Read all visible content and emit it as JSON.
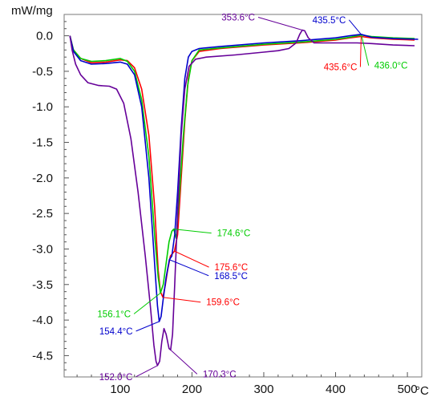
{
  "chart_data": {
    "type": "line",
    "ylabel": "mW/mg",
    "x_unit": "°C",
    "xlim": [
      22,
      520
    ],
    "ylim": [
      -4.8,
      0.3
    ],
    "x_ticks": [
      {
        "value": 100,
        "label": "100"
      },
      {
        "value": 200,
        "label": "200"
      },
      {
        "value": 300,
        "label": "300"
      },
      {
        "value": 400,
        "label": "400"
      },
      {
        "value": 500,
        "label": "500"
      }
    ],
    "y_ticks": [
      {
        "value": 0.0,
        "label": "0.0"
      },
      {
        "value": -0.5,
        "label": "-0.5"
      },
      {
        "value": -1.0,
        "label": "-1.0"
      },
      {
        "value": -1.5,
        "label": "-1.5"
      },
      {
        "value": -2.0,
        "label": "-2.0"
      },
      {
        "value": -2.5,
        "label": "-2.5"
      },
      {
        "value": -3.0,
        "label": "-3.0"
      },
      {
        "value": -3.5,
        "label": "-3.5"
      },
      {
        "value": -4.0,
        "label": "-4.0"
      },
      {
        "value": -4.5,
        "label": "-4.5"
      }
    ],
    "grid": false,
    "series": [
      {
        "color": "#ff0000",
        "points": [
          [
            30,
            0
          ],
          [
            35,
            -0.2
          ],
          [
            45,
            -0.32
          ],
          [
            60,
            -0.38
          ],
          [
            80,
            -0.37
          ],
          [
            100,
            -0.34
          ],
          [
            110,
            -0.35
          ],
          [
            120,
            -0.45
          ],
          [
            130,
            -0.75
          ],
          [
            140,
            -1.4
          ],
          [
            148,
            -2.4
          ],
          [
            153,
            -3.3
          ],
          [
            156,
            -3.6
          ],
          [
            159.6,
            -3.68
          ],
          [
            163,
            -3.5
          ],
          [
            166,
            -3.3
          ],
          [
            170,
            -3.1
          ],
          [
            175.6,
            -3.03
          ],
          [
            180,
            -2.8
          ],
          [
            185,
            -2.0
          ],
          [
            190,
            -1.2
          ],
          [
            195,
            -0.6
          ],
          [
            200,
            -0.35
          ],
          [
            210,
            -0.22
          ],
          [
            240,
            -0.18
          ],
          [
            300,
            -0.13
          ],
          [
            350,
            -0.1
          ],
          [
            400,
            -0.06
          ],
          [
            420,
            -0.03
          ],
          [
            435.6,
            -0.01
          ],
          [
            450,
            -0.03
          ],
          [
            480,
            -0.05
          ],
          [
            510,
            -0.06
          ]
        ]
      },
      {
        "color": "#00cc00",
        "points": [
          [
            30,
            0
          ],
          [
            35,
            -0.2
          ],
          [
            45,
            -0.32
          ],
          [
            60,
            -0.36
          ],
          [
            80,
            -0.35
          ],
          [
            100,
            -0.32
          ],
          [
            110,
            -0.36
          ],
          [
            120,
            -0.5
          ],
          [
            130,
            -0.9
          ],
          [
            140,
            -1.7
          ],
          [
            148,
            -2.8
          ],
          [
            153,
            -3.4
          ],
          [
            156.1,
            -3.62
          ],
          [
            160,
            -3.5
          ],
          [
            164,
            -3.2
          ],
          [
            168,
            -2.9
          ],
          [
            172,
            -2.75
          ],
          [
            174.6,
            -2.72
          ],
          [
            178,
            -2.85
          ],
          [
            182,
            -2.3
          ],
          [
            188,
            -1.4
          ],
          [
            194,
            -0.7
          ],
          [
            200,
            -0.35
          ],
          [
            210,
            -0.2
          ],
          [
            240,
            -0.17
          ],
          [
            300,
            -0.12
          ],
          [
            350,
            -0.09
          ],
          [
            400,
            -0.05
          ],
          [
            420,
            -0.02
          ],
          [
            436,
            0.01
          ],
          [
            450,
            -0.01
          ],
          [
            480,
            -0.03
          ],
          [
            510,
            -0.04
          ]
        ]
      },
      {
        "color": "#0000cc",
        "points": [
          [
            30,
            0
          ],
          [
            35,
            -0.22
          ],
          [
            45,
            -0.35
          ],
          [
            60,
            -0.4
          ],
          [
            80,
            -0.39
          ],
          [
            100,
            -0.37
          ],
          [
            110,
            -0.4
          ],
          [
            120,
            -0.55
          ],
          [
            130,
            -1.0
          ],
          [
            140,
            -2.0
          ],
          [
            148,
            -3.2
          ],
          [
            152,
            -3.8
          ],
          [
            154.4,
            -4.02
          ],
          [
            157,
            -3.95
          ],
          [
            160,
            -3.7
          ],
          [
            164,
            -3.4
          ],
          [
            168.5,
            -3.15
          ],
          [
            172,
            -3.1
          ],
          [
            176,
            -2.8
          ],
          [
            180,
            -2.2
          ],
          [
            185,
            -1.3
          ],
          [
            190,
            -0.6
          ],
          [
            195,
            -0.3
          ],
          [
            200,
            -0.22
          ],
          [
            210,
            -0.18
          ],
          [
            240,
            -0.15
          ],
          [
            300,
            -0.1
          ],
          [
            350,
            -0.07
          ],
          [
            400,
            -0.03
          ],
          [
            420,
            0.0
          ],
          [
            435.5,
            0.02
          ],
          [
            450,
            -0.02
          ],
          [
            480,
            -0.04
          ],
          [
            515,
            -0.05
          ]
        ]
      },
      {
        "color": "#660099",
        "points": [
          [
            30,
            0
          ],
          [
            33,
            -0.2
          ],
          [
            38,
            -0.4
          ],
          [
            45,
            -0.55
          ],
          [
            55,
            -0.66
          ],
          [
            70,
            -0.7
          ],
          [
            85,
            -0.71
          ],
          [
            95,
            -0.75
          ],
          [
            105,
            -0.95
          ],
          [
            115,
            -1.45
          ],
          [
            125,
            -2.2
          ],
          [
            135,
            -3.1
          ],
          [
            142,
            -3.8
          ],
          [
            147,
            -4.35
          ],
          [
            150,
            -4.58
          ],
          [
            152,
            -4.64
          ],
          [
            155,
            -4.58
          ],
          [
            158,
            -4.3
          ],
          [
            161,
            -4.12
          ],
          [
            164,
            -4.2
          ],
          [
            168,
            -4.4
          ],
          [
            170.3,
            -4.42
          ],
          [
            173,
            -4.2
          ],
          [
            176,
            -3.5
          ],
          [
            180,
            -2.5
          ],
          [
            185,
            -1.4
          ],
          [
            190,
            -0.75
          ],
          [
            196,
            -0.43
          ],
          [
            205,
            -0.33
          ],
          [
            220,
            -0.3
          ],
          [
            260,
            -0.27
          ],
          [
            300,
            -0.23
          ],
          [
            320,
            -0.21
          ],
          [
            335,
            -0.18
          ],
          [
            345,
            -0.1
          ],
          [
            350,
            0.02
          ],
          [
            353.6,
            0.08
          ],
          [
            357,
            0.07
          ],
          [
            362,
            -0.03
          ],
          [
            370,
            -0.1
          ],
          [
            400,
            -0.1
          ],
          [
            430,
            -0.1
          ],
          [
            450,
            -0.11
          ],
          [
            480,
            -0.13
          ],
          [
            510,
            -0.14
          ]
        ]
      }
    ],
    "annotations": [
      {
        "label": "353.6°C",
        "color": "#660099",
        "x": 353.6,
        "y": 0.08
      },
      {
        "label": "435.5°C",
        "color": "#0000cc",
        "x": 435.5,
        "y": 0.02
      },
      {
        "label": "435.6°C",
        "color": "#ff0000",
        "x": 435.6,
        "y": -0.01
      },
      {
        "label": "436.0°C",
        "color": "#00cc00",
        "x": 436.0,
        "y": 0.01
      },
      {
        "label": "174.6°C",
        "color": "#00cc00",
        "x": 174.6,
        "y": -2.72
      },
      {
        "label": "175.6°C",
        "color": "#ff0000",
        "x": 175.6,
        "y": -3.03
      },
      {
        "label": "168.5°C",
        "color": "#0000cc",
        "x": 168.5,
        "y": -3.15
      },
      {
        "label": "159.6°C",
        "color": "#ff0000",
        "x": 159.6,
        "y": -3.68
      },
      {
        "label": "156.1°C",
        "color": "#00cc00",
        "x": 156.1,
        "y": -3.62
      },
      {
        "label": "154.4°C",
        "color": "#0000cc",
        "x": 154.4,
        "y": -4.02
      },
      {
        "label": "152.0°C",
        "color": "#660099",
        "x": 152.0,
        "y": -4.64
      },
      {
        "label": "170.3°C",
        "color": "#660099",
        "x": 170.3,
        "y": -4.42
      }
    ]
  }
}
